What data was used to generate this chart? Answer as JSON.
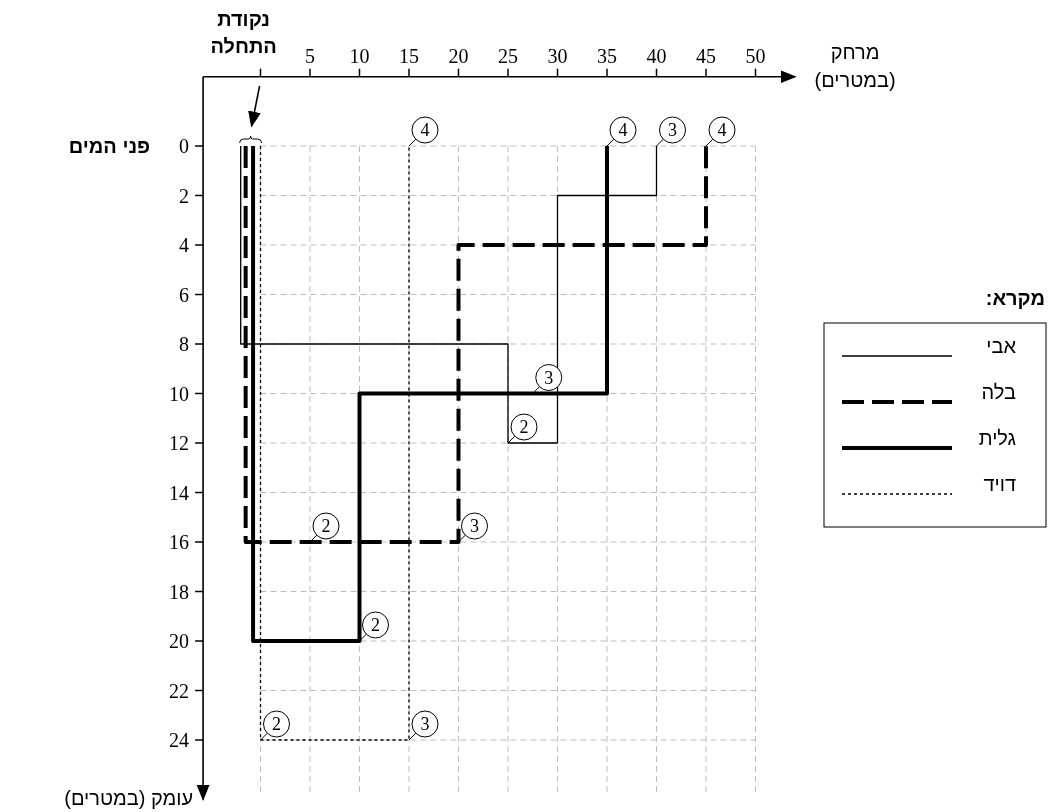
{
  "chart_data": {
    "type": "line",
    "xlabel": "מרחק (במטרים)",
    "ylabel": "עומק (במטרים)",
    "legend_title": "מקרא:",
    "annotations": [
      "נקודת התחלה",
      "פני המים",
      {
        "text": "2",
        "x": 25,
        "y": 12
      },
      {
        "text": "3",
        "x": 40,
        "y": 0
      },
      {
        "text": "2",
        "x": 5,
        "y": 16
      },
      {
        "text": "3",
        "x": 20,
        "y": 16
      },
      {
        "text": "4",
        "x": 45,
        "y": 0
      },
      {
        "text": "2",
        "x": 10,
        "y": 20
      },
      {
        "text": "3",
        "x": 27.5,
        "y": 10
      },
      {
        "text": "4",
        "x": 35,
        "y": 0
      },
      {
        "text": "2",
        "x": 0,
        "y": 24
      },
      {
        "text": "3",
        "x": 15,
        "y": 24
      },
      {
        "text": "4",
        "x": 15,
        "y": 0
      }
    ],
    "series": [
      {
        "name": "אבי",
        "color": "#000000",
        "line_style": "solid",
        "x": [
          -2,
          -2,
          25,
          25,
          30,
          30,
          40,
          40
        ],
        "values": [
          0,
          8,
          8,
          12,
          12,
          2,
          2,
          0
        ]
      },
      {
        "name": "בלה",
        "color": "#000000",
        "line_style": "dashed",
        "x": [
          -1.5,
          -1.5,
          20,
          20,
          45,
          45
        ],
        "values": [
          0,
          16,
          16,
          4,
          4,
          0
        ]
      },
      {
        "name": "גלית",
        "color": "#000000",
        "line_style": "solid",
        "x": [
          -0.75,
          -0.75,
          10,
          10,
          35,
          35
        ],
        "values": [
          0,
          20,
          20,
          10,
          10,
          0
        ]
      },
      {
        "name": "דויד",
        "color": "#000000",
        "line_style": "dotted",
        "x": [
          0,
          0,
          15,
          15
        ],
        "values": [
          0,
          24,
          24,
          0
        ]
      }
    ],
    "xlim": [
      -5.8,
      54
    ],
    "ylim": [
      26.4,
      -2.8
    ],
    "xticks": [
      {
        "value": 0,
        "label": null
      },
      5,
      10,
      15,
      20,
      25,
      30,
      35,
      40,
      45,
      50
    ],
    "yticks": [
      0,
      2,
      4,
      6,
      8,
      10,
      12,
      14,
      16,
      18,
      20,
      22,
      24
    ],
    "grid": true,
    "legend": "right"
  }
}
